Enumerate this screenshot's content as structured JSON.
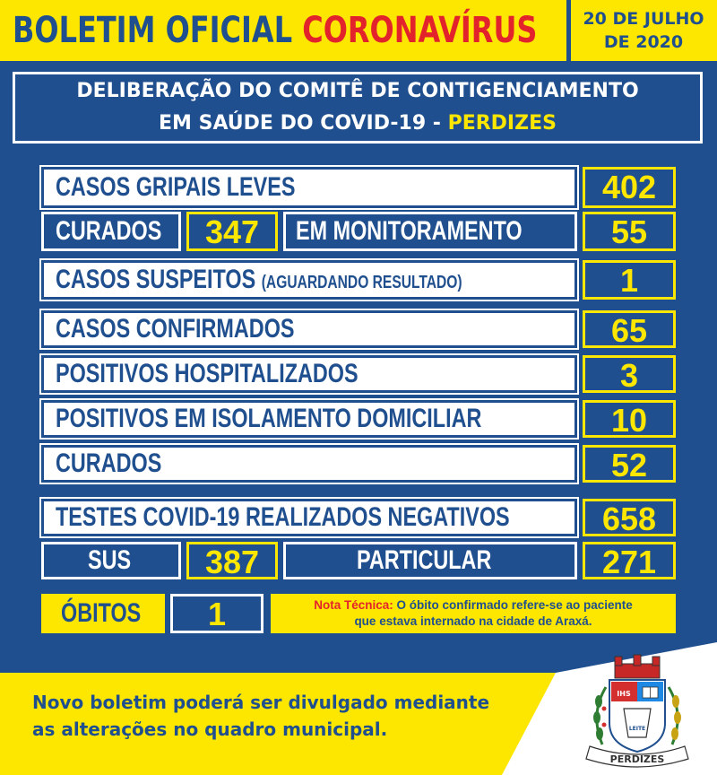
{
  "header": {
    "title_part1": "BOLETIM OFICIAL ",
    "title_part2": "CORONAVÍRUS",
    "date_line1": "20 DE JULHO",
    "date_line2": "DE 2020"
  },
  "deliberation": {
    "line1": "DELIBERAÇÃO DO COMITÊ DE CONTIGENCIAMENTO",
    "line2": "EM SAÚDE DO COVID-19 - ",
    "city": "PERDIZES"
  },
  "stats": {
    "casos_gripais_label": "CASOS GRIPAIS LEVES",
    "casos_gripais_value": "402",
    "curados1_label": "CURADOS",
    "curados1_value": "347",
    "monitoramento_label": "EM MONITORAMENTO",
    "monitoramento_value": "55",
    "suspeitos_label": "CASOS SUSPEITOS",
    "suspeitos_note": "(AGUARDANDO RESULTADO)",
    "suspeitos_value": "1",
    "confirmados_label": "CASOS CONFIRMADOS",
    "confirmados_value": "65",
    "hospitalizados_label": "POSITIVOS HOSPITALIZADOS",
    "hospitalizados_value": "3",
    "isolamento_label": "POSITIVOS EM ISOLAMENTO DOMICILIAR",
    "isolamento_value": "10",
    "curados2_label": "CURADOS",
    "curados2_value": "52",
    "testes_label": "TESTES COVID-19 REALIZADOS NEGATIVOS",
    "testes_value": "658",
    "sus_label": "SUS",
    "sus_value": "387",
    "particular_label": "PARTICULAR",
    "particular_value": "271",
    "obitos_label": "ÓBITOS",
    "obitos_value": "1"
  },
  "nota": {
    "title": "Nota Técnica:",
    "line1": " O óbito confirmado refere-se ao paciente",
    "line2": "que estava internado na cidade de Araxá."
  },
  "footer": {
    "line1": "Novo boletim poderá ser divulgado mediante",
    "line2": "as alterações no quadro municipal."
  },
  "emblem": {
    "name": "perdizes-coat-of-arms",
    "ribbon": "PERDIZES",
    "shield_text_1": "IHS",
    "shield_text_2": "LEITE"
  },
  "colors": {
    "background": "#1f4f8e",
    "yellow": "#fde700",
    "red": "#e3232c",
    "white": "#ffffff"
  }
}
